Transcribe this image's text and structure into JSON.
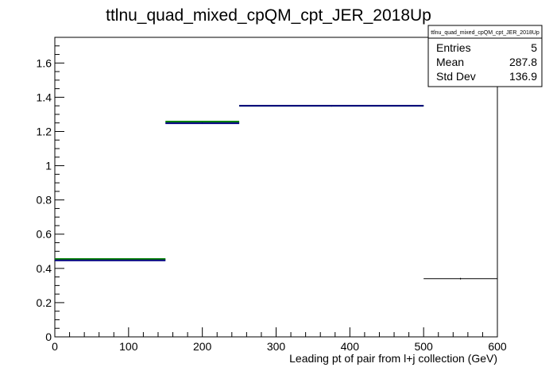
{
  "chart_data": {
    "type": "histogram",
    "title": "ttlnu_quad_mixed_cpQM_cpt_JER_2018Up",
    "xlabel": "Leading pt of pair from l+j collection (GeV)",
    "ylabel": "",
    "xlim": [
      0,
      600
    ],
    "ylim": [
      0,
      1.75
    ],
    "x_ticks": [
      "0",
      "100",
      "200",
      "300",
      "400",
      "500",
      "600"
    ],
    "y_ticks": [
      "0",
      "0.2",
      "0.4",
      "0.6",
      "0.8",
      "1",
      "1.2",
      "1.4",
      "1.6"
    ],
    "grid": false,
    "bins": [
      {
        "x_low": 0,
        "x_high": 150,
        "value": 0.45
      },
      {
        "x_low": 150,
        "x_high": 250,
        "value": 1.25
      },
      {
        "x_low": 250,
        "x_high": 500,
        "value": 1.35
      },
      {
        "x_low": 500,
        "x_high": 600,
        "value": 0.34
      }
    ],
    "series": [
      {
        "color": "#008000",
        "values": [
          0.455,
          1.258,
          1.35
        ]
      },
      {
        "color": "#000080",
        "values": [
          0.447,
          1.248,
          1.35
        ]
      }
    ],
    "stats_box": {
      "title": "ttlnu_quad_mixed_cpQM_cpt_JER_2018Up",
      "rows": [
        {
          "label": "Entries",
          "value": "5"
        },
        {
          "label": "Mean",
          "value": "287.8"
        },
        {
          "label": "Std Dev",
          "value": "136.9"
        }
      ]
    }
  }
}
